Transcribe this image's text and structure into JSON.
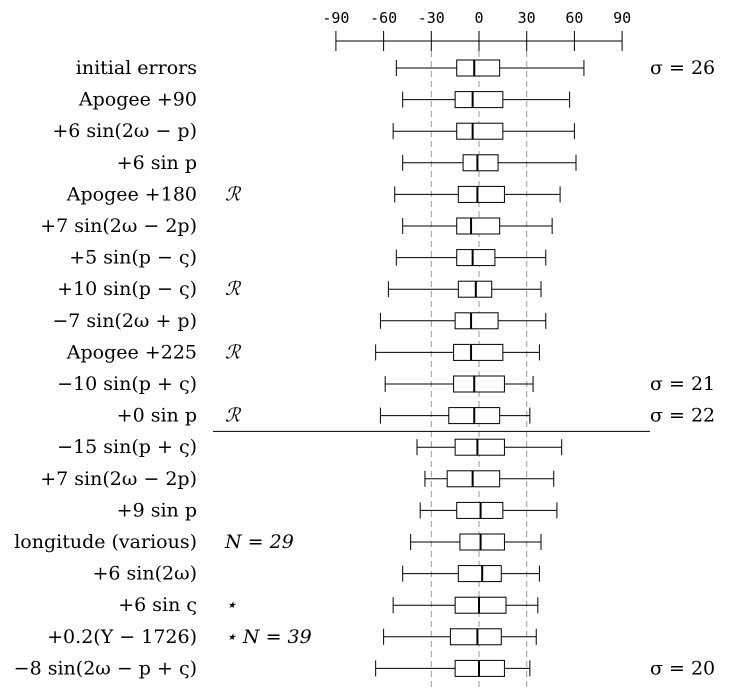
{
  "chart_data": {
    "type": "boxplot",
    "axis": {
      "xlim": [
        -90,
        90
      ],
      "ticks": [
        -90,
        -60,
        -30,
        0,
        30,
        60,
        90
      ],
      "tick_labels": [
        "-90",
        "-60",
        "-30",
        "0",
        "30",
        "60",
        "90"
      ],
      "dashed_reference_lines": [
        -30,
        0,
        30
      ]
    },
    "rows": [
      {
        "label": "initial errors",
        "marker": "",
        "sigma": "σ = 26",
        "whisker_low": -52,
        "q1": -14,
        "median": -3,
        "q3": 13,
        "whisker_high": 66
      },
      {
        "label": "Apogee +90",
        "marker": "",
        "sigma": "",
        "whisker_low": -48,
        "q1": -15,
        "median": -4,
        "q3": 15,
        "whisker_high": 57
      },
      {
        "label": "+6 sin(2ω − p)",
        "marker": "",
        "sigma": "",
        "whisker_low": -54,
        "q1": -14,
        "median": -4,
        "q3": 15,
        "whisker_high": 60
      },
      {
        "label": "+6 sin p",
        "marker": "",
        "sigma": "",
        "whisker_low": -48,
        "q1": -10,
        "median": -1,
        "q3": 12,
        "whisker_high": 61
      },
      {
        "label": "Apogee +180",
        "marker": "ℛ",
        "sigma": "",
        "whisker_low": -53,
        "q1": -13,
        "median": -1,
        "q3": 16,
        "whisker_high": 51
      },
      {
        "label": "+7 sin(2ω − 2p)",
        "marker": "",
        "sigma": "",
        "whisker_low": -48,
        "q1": -14,
        "median": -5,
        "q3": 13,
        "whisker_high": 46
      },
      {
        "label": "+5 sin(p − ς)",
        "marker": "",
        "sigma": "",
        "whisker_low": -52,
        "q1": -14,
        "median": -4,
        "q3": 10,
        "whisker_high": 42
      },
      {
        "label": "+10 sin(p − ς)",
        "marker": "ℛ",
        "sigma": "",
        "whisker_low": -57,
        "q1": -13,
        "median": -2,
        "q3": 8,
        "whisker_high": 39
      },
      {
        "label": "−7 sin(2ω + p)",
        "marker": "",
        "sigma": "",
        "whisker_low": -62,
        "q1": -15,
        "median": -5,
        "q3": 12,
        "whisker_high": 42
      },
      {
        "label": "Apogee +225",
        "marker": "ℛ",
        "sigma": "",
        "whisker_low": -65,
        "q1": -16,
        "median": -5,
        "q3": 15,
        "whisker_high": 38
      },
      {
        "label": "−10 sin(p + ς)",
        "marker": "",
        "sigma": "σ = 21",
        "whisker_low": -59,
        "q1": -16,
        "median": -3,
        "q3": 16,
        "whisker_high": 34
      },
      {
        "label": "+0 sin p",
        "marker": "ℛ",
        "sigma": "σ = 22",
        "whisker_low": -62,
        "q1": -19,
        "median": -3,
        "q3": 13,
        "whisker_high": 32
      },
      {
        "label": "−15 sin(p + ς)",
        "marker": "",
        "sigma": "",
        "whisker_low": -39,
        "q1": -15,
        "median": -1,
        "q3": 16,
        "whisker_high": 52
      },
      {
        "label": "+7 sin(2ω − 2p)",
        "marker": "",
        "sigma": "",
        "whisker_low": -34,
        "q1": -20,
        "median": -4,
        "q3": 13,
        "whisker_high": 47
      },
      {
        "label": "+9 sin p",
        "marker": "",
        "sigma": "",
        "whisker_low": -37,
        "q1": -14,
        "median": 1,
        "q3": 15,
        "whisker_high": 49
      },
      {
        "label": "longitude (various)",
        "marker": "N = 29",
        "sigma": "",
        "whisker_low": -43,
        "q1": -12,
        "median": 1,
        "q3": 16,
        "whisker_high": 39
      },
      {
        "label": "+6 sin(2ω)",
        "marker": "",
        "sigma": "",
        "whisker_low": -48,
        "q1": -13,
        "median": 2,
        "q3": 14,
        "whisker_high": 38
      },
      {
        "label": "+6 sin ς",
        "marker": "⋆",
        "sigma": "",
        "whisker_low": -54,
        "q1": -15,
        "median": 0,
        "q3": 17,
        "whisker_high": 37
      },
      {
        "label": "+0.2(Y − 1726)",
        "marker": "⋆ N = 39",
        "sigma": "",
        "whisker_low": -60,
        "q1": -18,
        "median": -1,
        "q3": 14,
        "whisker_high": 36
      },
      {
        "label": "−8 sin(2ω − p + ς)",
        "marker": "",
        "sigma": "σ = 20",
        "whisker_low": -65,
        "q1": -15,
        "median": 0,
        "q3": 16,
        "whisker_high": 32
      }
    ],
    "separator_after_row": 12
  }
}
